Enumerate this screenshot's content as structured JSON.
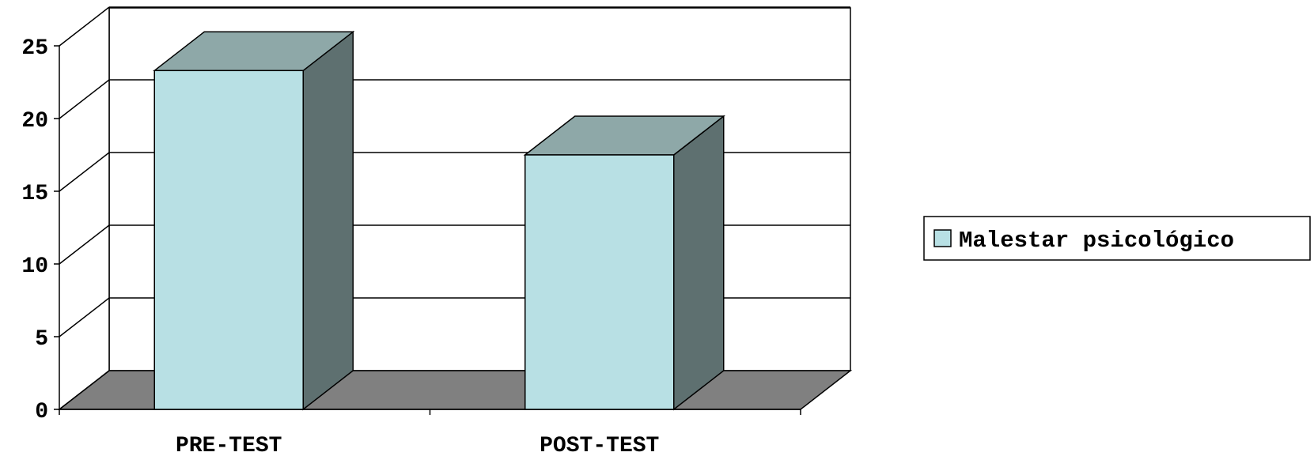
{
  "chart_data": {
    "type": "bar",
    "categories": [
      "PRE-TEST",
      "POST-TEST"
    ],
    "series": [
      {
        "name": "Malestar psicológico",
        "values": [
          23.3,
          17.5
        ]
      }
    ],
    "ylim": [
      0,
      25
    ],
    "y_ticks": [
      0,
      5,
      10,
      15,
      20,
      25
    ],
    "grid": true,
    "legend_position": "right",
    "colors": {
      "bar_front": "#b8e0e4",
      "bar_side": "#5e7070",
      "bar_top": "#8ea8a8",
      "floor": "#808080",
      "gridline": "#000000",
      "wall": "#ffffff"
    }
  }
}
